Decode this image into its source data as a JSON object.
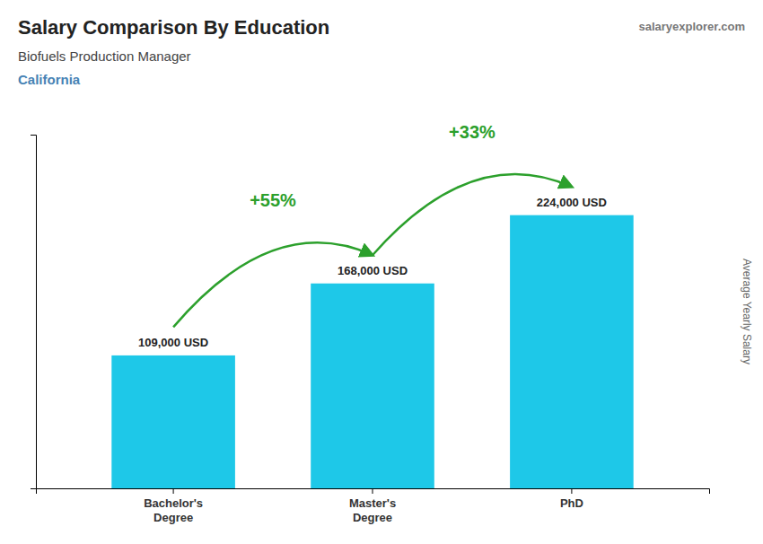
{
  "chart_data": {
    "type": "bar",
    "title": "Salary Comparison By Education",
    "subtitle": "Biofuels Production Manager",
    "ylabel": "Average Yearly Salary",
    "annotations": [
      "California",
      "salaryexplorer.com",
      "+55%",
      "+33%"
    ],
    "categories": [
      "Bachelor's\nDegree",
      "Master's\nDegree",
      "PhD"
    ],
    "values": [
      109000,
      168000,
      224000
    ],
    "value_labels": [
      "109,000 USD",
      "168,000 USD",
      "224,000 USD"
    ],
    "data_labels": true,
    "color": "#1EC8E8",
    "ylim": [
      0,
      290000
    ],
    "yticks": [],
    "grid": false,
    "tick_labels": "x"
  }
}
